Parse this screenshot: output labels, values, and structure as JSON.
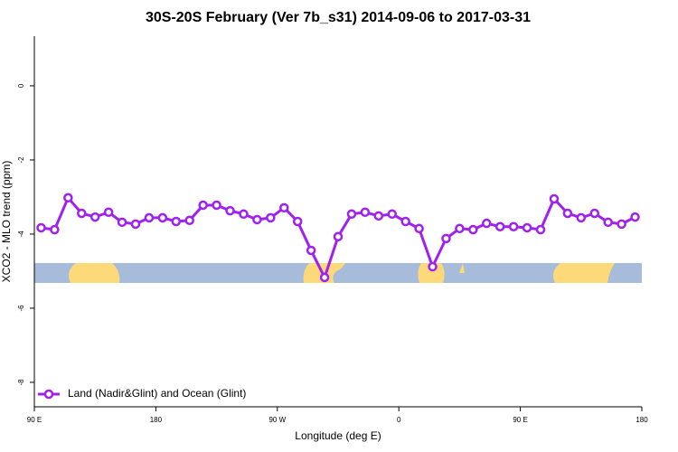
{
  "chart_data": {
    "type": "line",
    "title": "30S-20S February (Ver 7b_s31)   2014-09-06 to 2017-03-31",
    "x_label": "Longitude (deg E)",
    "y_label": "XCO2 - MLO trend (ppm)",
    "xlim": [
      90,
      540
    ],
    "xticks": [
      {
        "value": 90,
        "label": "90 E"
      },
      180,
      {
        "value": 270,
        "label": "90 W"
      },
      {
        "value": 360,
        "label": "0"
      },
      {
        "value": 450,
        "label": "90 E"
      },
      {
        "value": 540,
        "label": "180"
      }
    ],
    "ylim": [
      -8.66,
      1.34
    ],
    "yticks": [
      0,
      -2,
      -4,
      -6,
      -8
    ],
    "legend": "bottom-left",
    "x": [
      95,
      105,
      115,
      125,
      135,
      145,
      155,
      165,
      175,
      185,
      195,
      205,
      215,
      225,
      235,
      245,
      255,
      265,
      275,
      285,
      295,
      305,
      315,
      325,
      335,
      345,
      355,
      365,
      375,
      385,
      395,
      405,
      415,
      425,
      435,
      445,
      455,
      465,
      475,
      485,
      495,
      505,
      515,
      525,
      535
    ],
    "series": [
      {
        "name": "Land (Nadir&Glint) and Ocean (Glint)",
        "color": "#a020f0",
        "values": [
          -3.83,
          -3.88,
          -3.02,
          -3.44,
          -3.54,
          -3.41,
          -3.68,
          -3.73,
          -3.56,
          -3.56,
          -3.66,
          -3.63,
          -3.22,
          -3.22,
          -3.37,
          -3.46,
          -3.61,
          -3.56,
          -3.29,
          -3.66,
          -4.44,
          -5.17,
          -4.07,
          -3.46,
          -3.41,
          -3.51,
          -3.46,
          -3.66,
          -3.85,
          -4.88,
          -4.12,
          -3.85,
          -3.88,
          -3.71,
          -3.8,
          -3.8,
          -3.83,
          -3.88,
          -3.05,
          -3.44,
          -3.56,
          -3.44,
          -3.68,
          -3.73,
          -3.54
        ]
      }
    ]
  }
}
